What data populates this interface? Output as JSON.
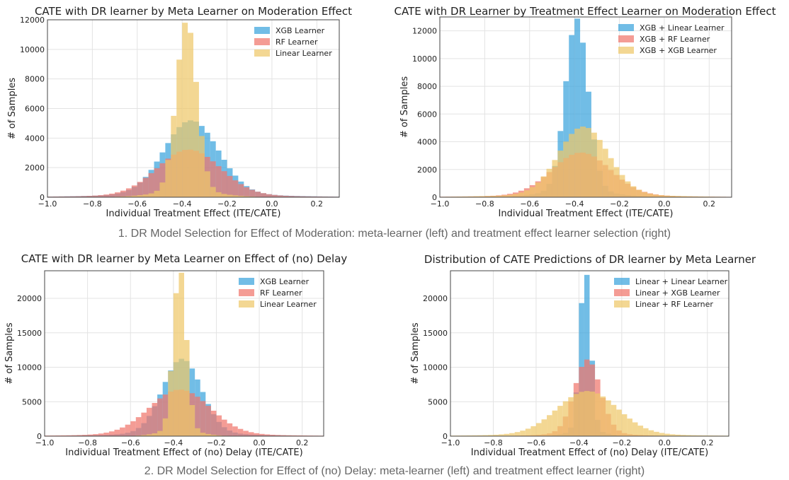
{
  "captions": {
    "first": "1. DR Model Selection for Effect of Moderation: meta-learner (left) and treatment effect learner selection (right)",
    "second": "2.  DR Model Selection for Effect of (no) Delay: meta-learner (left) and treatment effect learner (right)"
  },
  "colors": {
    "blue": "#3aa3dc",
    "red": "#f0766c",
    "yellow": "#eec76a"
  },
  "chart_data": [
    {
      "type": "histogram",
      "title": "CATE with DR learner by Meta Learner on Moderation Effect",
      "xlabel": "Individual Treatment Effect (ITE/CATE)",
      "ylabel": "# of Samples",
      "xlim": [
        -1.0,
        0.3
      ],
      "ylim": [
        0,
        12000
      ],
      "xticks": [
        "−1.0",
        "−0.8",
        "−0.6",
        "−0.4",
        "−0.2",
        "0.0",
        "0.2"
      ],
      "xtick_values": [
        -1.0,
        -0.8,
        -0.6,
        -0.4,
        -0.2,
        0.0,
        0.2
      ],
      "yticks": [
        0,
        2000,
        4000,
        6000,
        8000,
        10000,
        12000
      ],
      "legend_position": "top-right",
      "series": [
        {
          "name": "XGB Learner",
          "color": "blue",
          "mean": -0.36,
          "sd": 0.12,
          "peak": 5000
        },
        {
          "name": "RF Learner",
          "color": "red",
          "mean": -0.37,
          "sd": 0.14,
          "peak": 3100
        },
        {
          "name": "Linear Learner",
          "color": "yellow",
          "mean": -0.38,
          "sd": 0.045,
          "peak": 11500
        }
      ]
    },
    {
      "type": "histogram",
      "title": "CATE with DR Learner by Treatment Effect Learner on Moderation Effect",
      "xlabel": "Individual Treatment Effect (ITE/CATE)",
      "ylabel": "# of Samples",
      "xlim": [
        -1.0,
        0.3
      ],
      "ylim": [
        0,
        13000
      ],
      "xticks": [
        "−1.0",
        "−0.8",
        "−0.6",
        "−0.4",
        "−0.2",
        "0.0",
        "0.2"
      ],
      "xtick_values": [
        -1.0,
        -0.8,
        -0.6,
        -0.4,
        -0.2,
        0.0,
        0.2
      ],
      "yticks": [
        0,
        2000,
        4000,
        6000,
        8000,
        10000,
        12000
      ],
      "legend_position": "top-right",
      "series": [
        {
          "name": "XGB + Linear Learner",
          "color": "blue",
          "mean": -0.39,
          "sd": 0.05,
          "peak": 12400
        },
        {
          "name": "XGB + RF Learner",
          "color": "red",
          "mean": -0.37,
          "sd": 0.13,
          "peak": 3100
        },
        {
          "name": "XGB + XGB Learner",
          "color": "yellow",
          "mean": -0.36,
          "sd": 0.11,
          "peak": 4900
        }
      ]
    },
    {
      "type": "histogram",
      "title": "CATE with DR learner by Meta Learner on Effect of (no) Delay",
      "xlabel": "Individual Treatment Effect of (no) Delay (ITE/CATE)",
      "ylabel": "# of Samples",
      "xlim": [
        -1.0,
        0.3
      ],
      "ylim": [
        0,
        24000
      ],
      "xticks": [
        "−1.0",
        "−0.8",
        "−0.6",
        "−0.4",
        "−0.2",
        "0.0",
        "0.2"
      ],
      "xtick_values": [
        -1.0,
        -0.8,
        -0.6,
        -0.4,
        -0.2,
        0.0,
        0.2
      ],
      "yticks": [
        0,
        5000,
        10000,
        15000,
        20000
      ],
      "legend_position": "top-right",
      "series": [
        {
          "name": "XGB Learner",
          "color": "blue",
          "mean": -0.36,
          "sd": 0.09,
          "peak": 10800
        },
        {
          "name": "RF Learner",
          "color": "red",
          "mean": -0.37,
          "sd": 0.14,
          "peak": 6500
        },
        {
          "name": "Linear Learner",
          "color": "yellow",
          "mean": -0.37,
          "sd": 0.03,
          "peak": 23500
        }
      ]
    },
    {
      "type": "histogram",
      "title": "Distribution of CATE Predictions of DR learner by Meta Learner",
      "xlabel": "Individual Treatment Effect of (no) Delay (ITE/CATE)",
      "ylabel": "# of Samples",
      "xlim": [
        -1.0,
        0.3
      ],
      "ylim": [
        0,
        24000
      ],
      "xticks": [
        "−1.0",
        "−0.8",
        "−0.6",
        "−0.4",
        "−0.2",
        "0.0",
        "0.2"
      ],
      "xtick_values": [
        -1.0,
        -0.8,
        -0.6,
        -0.4,
        -0.2,
        0.0,
        0.2
      ],
      "yticks": [
        0,
        5000,
        10000,
        15000,
        20000
      ],
      "legend_position": "top-right",
      "series": [
        {
          "name": "Linear + Linear Learner",
          "color": "blue",
          "mean": -0.37,
          "sd": 0.025,
          "peak": 23500
        },
        {
          "name": "Linear + XGB Learner",
          "color": "red",
          "mean": -0.36,
          "sd": 0.06,
          "peak": 10700
        },
        {
          "name": "Linear + RF Learner",
          "color": "yellow",
          "mean": -0.36,
          "sd": 0.14,
          "peak": 6300
        }
      ]
    }
  ]
}
